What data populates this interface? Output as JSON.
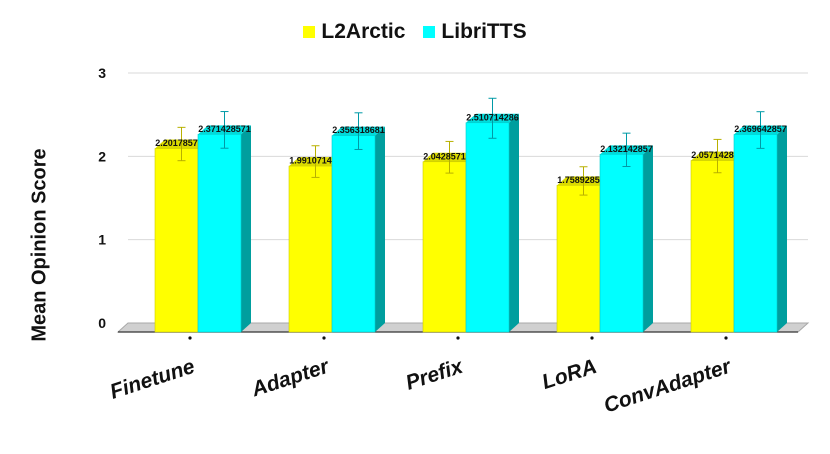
{
  "chart_data": {
    "type": "bar",
    "title": "",
    "xlabel": "",
    "ylabel": "Mean Opinion Score",
    "ylim": [
      0,
      3
    ],
    "yticks": [
      0,
      1,
      2,
      3
    ],
    "grid": true,
    "legend_position": "top-center",
    "categories": [
      "Finetune",
      "Adapter",
      "Prefix",
      "LoRA",
      "ConvAdapter"
    ],
    "series": [
      {
        "name": "L2Arctic",
        "color": "#ffff00",
        "values": [
          2.201785714,
          1.991071429,
          2.042857143,
          1.758928571,
          2.057142857
        ],
        "labels": [
          "2.201785714",
          "1.991071429",
          "2.042857143",
          "1.758928571",
          "2.057142857"
        ],
        "error": [
          0.2,
          0.19,
          0.19,
          0.17,
          0.2
        ]
      },
      {
        "name": "LibriTTS",
        "color": "#00ffff",
        "values": [
          2.371428571,
          2.356318681,
          2.510714286,
          2.132142857,
          2.369642857
        ],
        "labels": [
          "2.371428571",
          "2.356318681",
          "2.510714286",
          "2.132142857",
          "2.369642857"
        ],
        "error": [
          0.22,
          0.22,
          0.24,
          0.2,
          0.22
        ]
      }
    ]
  }
}
